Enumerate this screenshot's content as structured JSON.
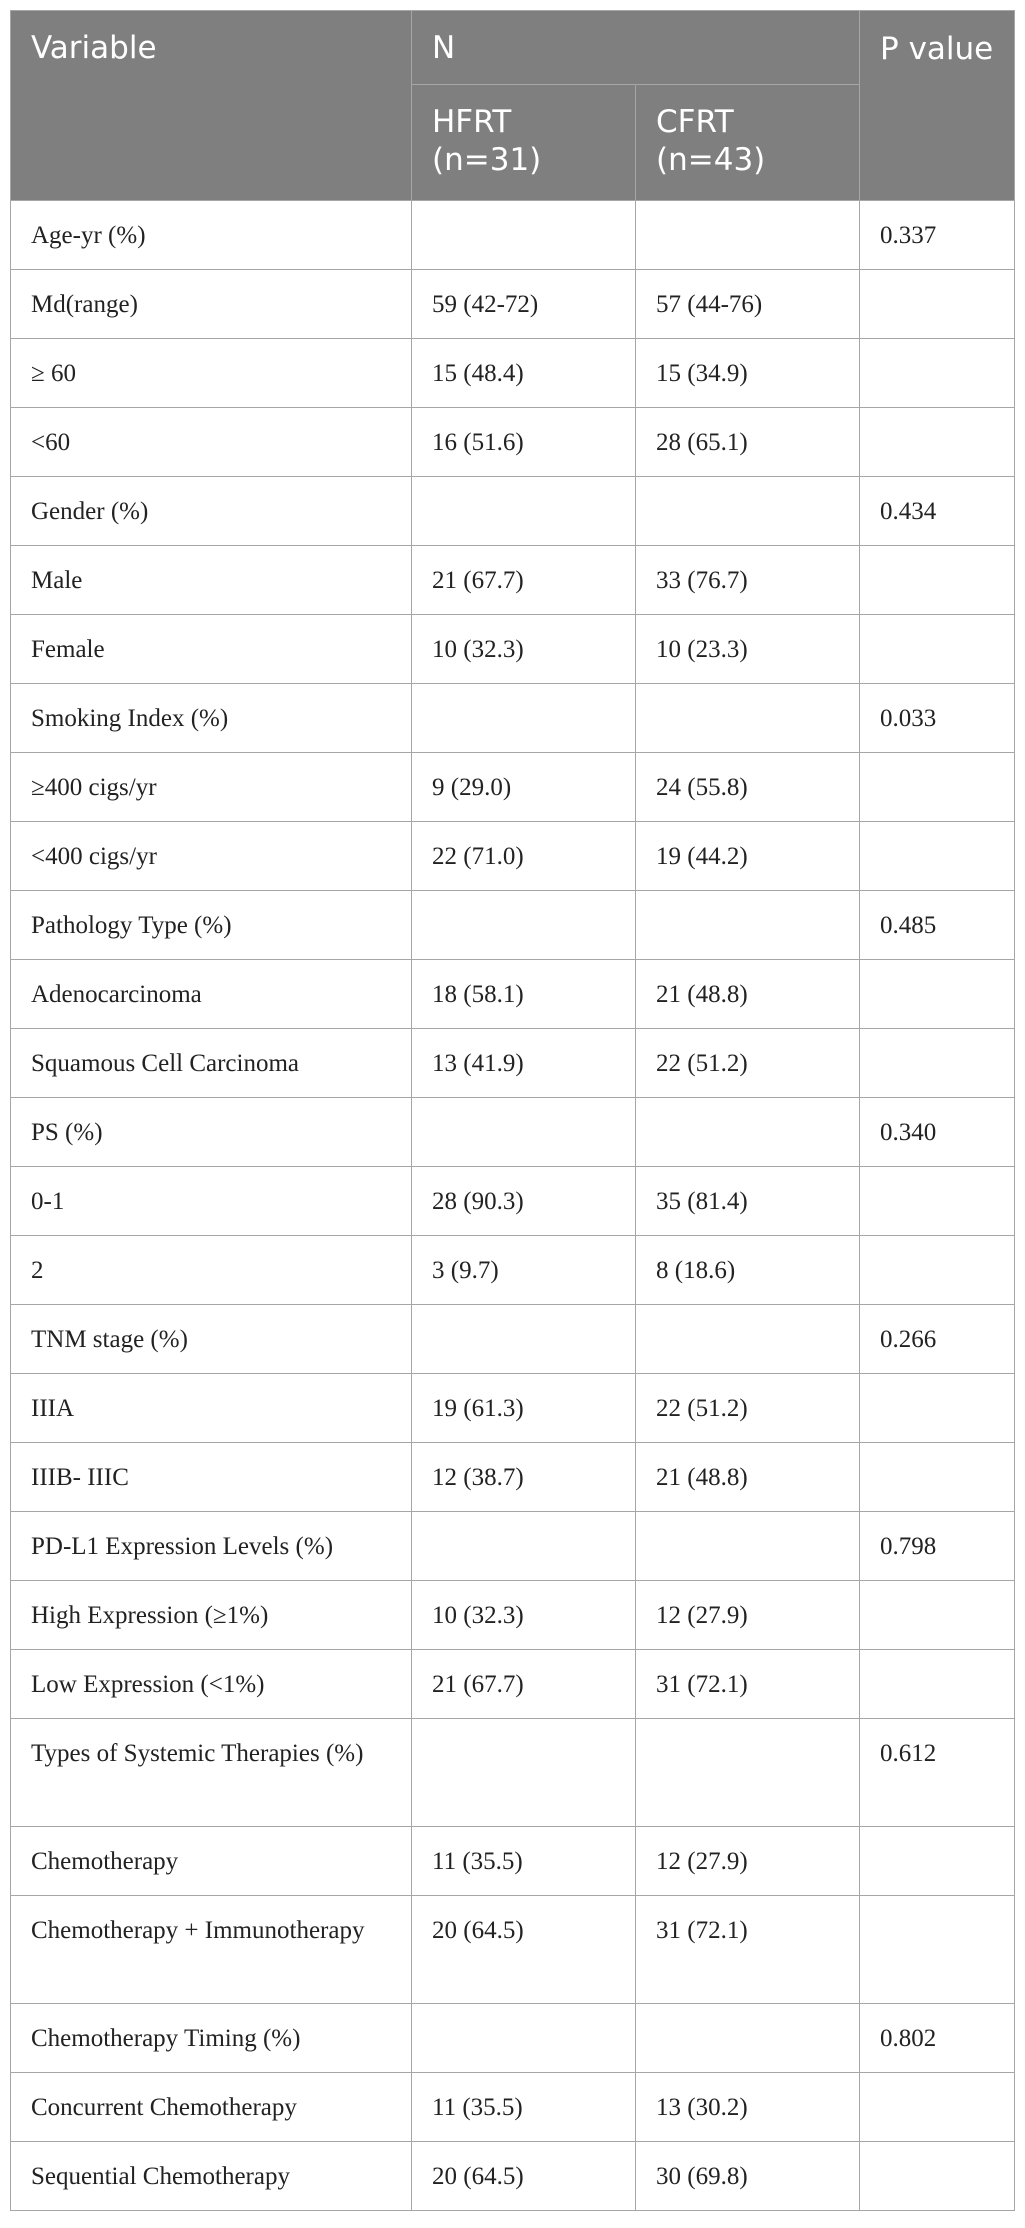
{
  "header": {
    "variable": "Variable",
    "n": "N",
    "hfrt": "HFRT (n=31)",
    "cfrt": "CFRT (n=43)",
    "p_value": "P value"
  },
  "rows": [
    {
      "variable": "Age-yr (%)",
      "hfrt": "",
      "cfrt": "",
      "p": "0.337"
    },
    {
      "variable": "Md(range)",
      "hfrt": "59 (42-72)",
      "cfrt": "57 (44-76)",
      "p": ""
    },
    {
      "variable": "≥ 60",
      "hfrt": "15 (48.4)",
      "cfrt": "15 (34.9)",
      "p": ""
    },
    {
      "variable": "<60",
      "hfrt": "16 (51.6)",
      "cfrt": "28 (65.1)",
      "p": ""
    },
    {
      "variable": "Gender (%)",
      "hfrt": "",
      "cfrt": "",
      "p": "0.434"
    },
    {
      "variable": "Male",
      "hfrt": "21 (67.7)",
      "cfrt": "33 (76.7)",
      "p": ""
    },
    {
      "variable": "Female",
      "hfrt": "10 (32.3)",
      "cfrt": "10 (23.3)",
      "p": ""
    },
    {
      "variable": "Smoking Index (%)",
      "hfrt": "",
      "cfrt": "",
      "p": "0.033"
    },
    {
      "variable": "≥400 cigs/yr",
      "hfrt": "9 (29.0)",
      "cfrt": "24 (55.8)",
      "p": ""
    },
    {
      "variable": "<400 cigs/yr",
      "hfrt": "22 (71.0)",
      "cfrt": "19 (44.2)",
      "p": ""
    },
    {
      "variable": "Pathology Type (%)",
      "hfrt": "",
      "cfrt": "",
      "p": "0.485"
    },
    {
      "variable": "Adenocarcinoma",
      "hfrt": "18 (58.1)",
      "cfrt": "21 (48.8)",
      "p": ""
    },
    {
      "variable": "Squamous Cell Carcinoma",
      "hfrt": "13 (41.9)",
      "cfrt": "22 (51.2)",
      "p": ""
    },
    {
      "variable": "PS (%)",
      "hfrt": "",
      "cfrt": "",
      "p": "0.340"
    },
    {
      "variable": "0-1",
      "hfrt": "28 (90.3)",
      "cfrt": "35 (81.4)",
      "p": ""
    },
    {
      "variable": "2",
      "hfrt": "3 (9.7)",
      "cfrt": "8 (18.6)",
      "p": ""
    },
    {
      "variable": "TNM stage (%)",
      "hfrt": "",
      "cfrt": "",
      "p": "0.266"
    },
    {
      "variable": "IIIA",
      "hfrt": "19 (61.3)",
      "cfrt": "22 (51.2)",
      "p": ""
    },
    {
      "variable": "IIIB- IIIC",
      "hfrt": "12 (38.7)",
      "cfrt": "21 (48.8)",
      "p": ""
    },
    {
      "variable": "PD-L1 Expression Levels (%)",
      "hfrt": "",
      "cfrt": "",
      "p": "0.798"
    },
    {
      "variable": "High Expression (≥1%)",
      "hfrt": "10 (32.3)",
      "cfrt": "12 (27.9)",
      "p": ""
    },
    {
      "variable": "Low Expression (<1%)",
      "hfrt": "21 (67.7)",
      "cfrt": "31 (72.1)",
      "p": ""
    },
    {
      "variable": "Types of Systemic Therapies (%)",
      "hfrt": "",
      "cfrt": "",
      "p": "0.612"
    },
    {
      "variable": "Chemotherapy",
      "hfrt": "11 (35.5)",
      "cfrt": "12 (27.9)",
      "p": ""
    },
    {
      "variable": "Chemotherapy + Immunotherapy",
      "hfrt": "20 (64.5)",
      "cfrt": "31 (72.1)",
      "p": ""
    },
    {
      "variable": "Chemotherapy Timing (%)",
      "hfrt": "",
      "cfrt": "",
      "p": "0.802"
    },
    {
      "variable": "Concurrent Chemotherapy",
      "hfrt": "11 (35.5)",
      "cfrt": "13 (30.2)",
      "p": ""
    },
    {
      "variable": "Sequential Chemotherapy",
      "hfrt": "20 (64.5)",
      "cfrt": "30 (69.8)",
      "p": ""
    }
  ]
}
